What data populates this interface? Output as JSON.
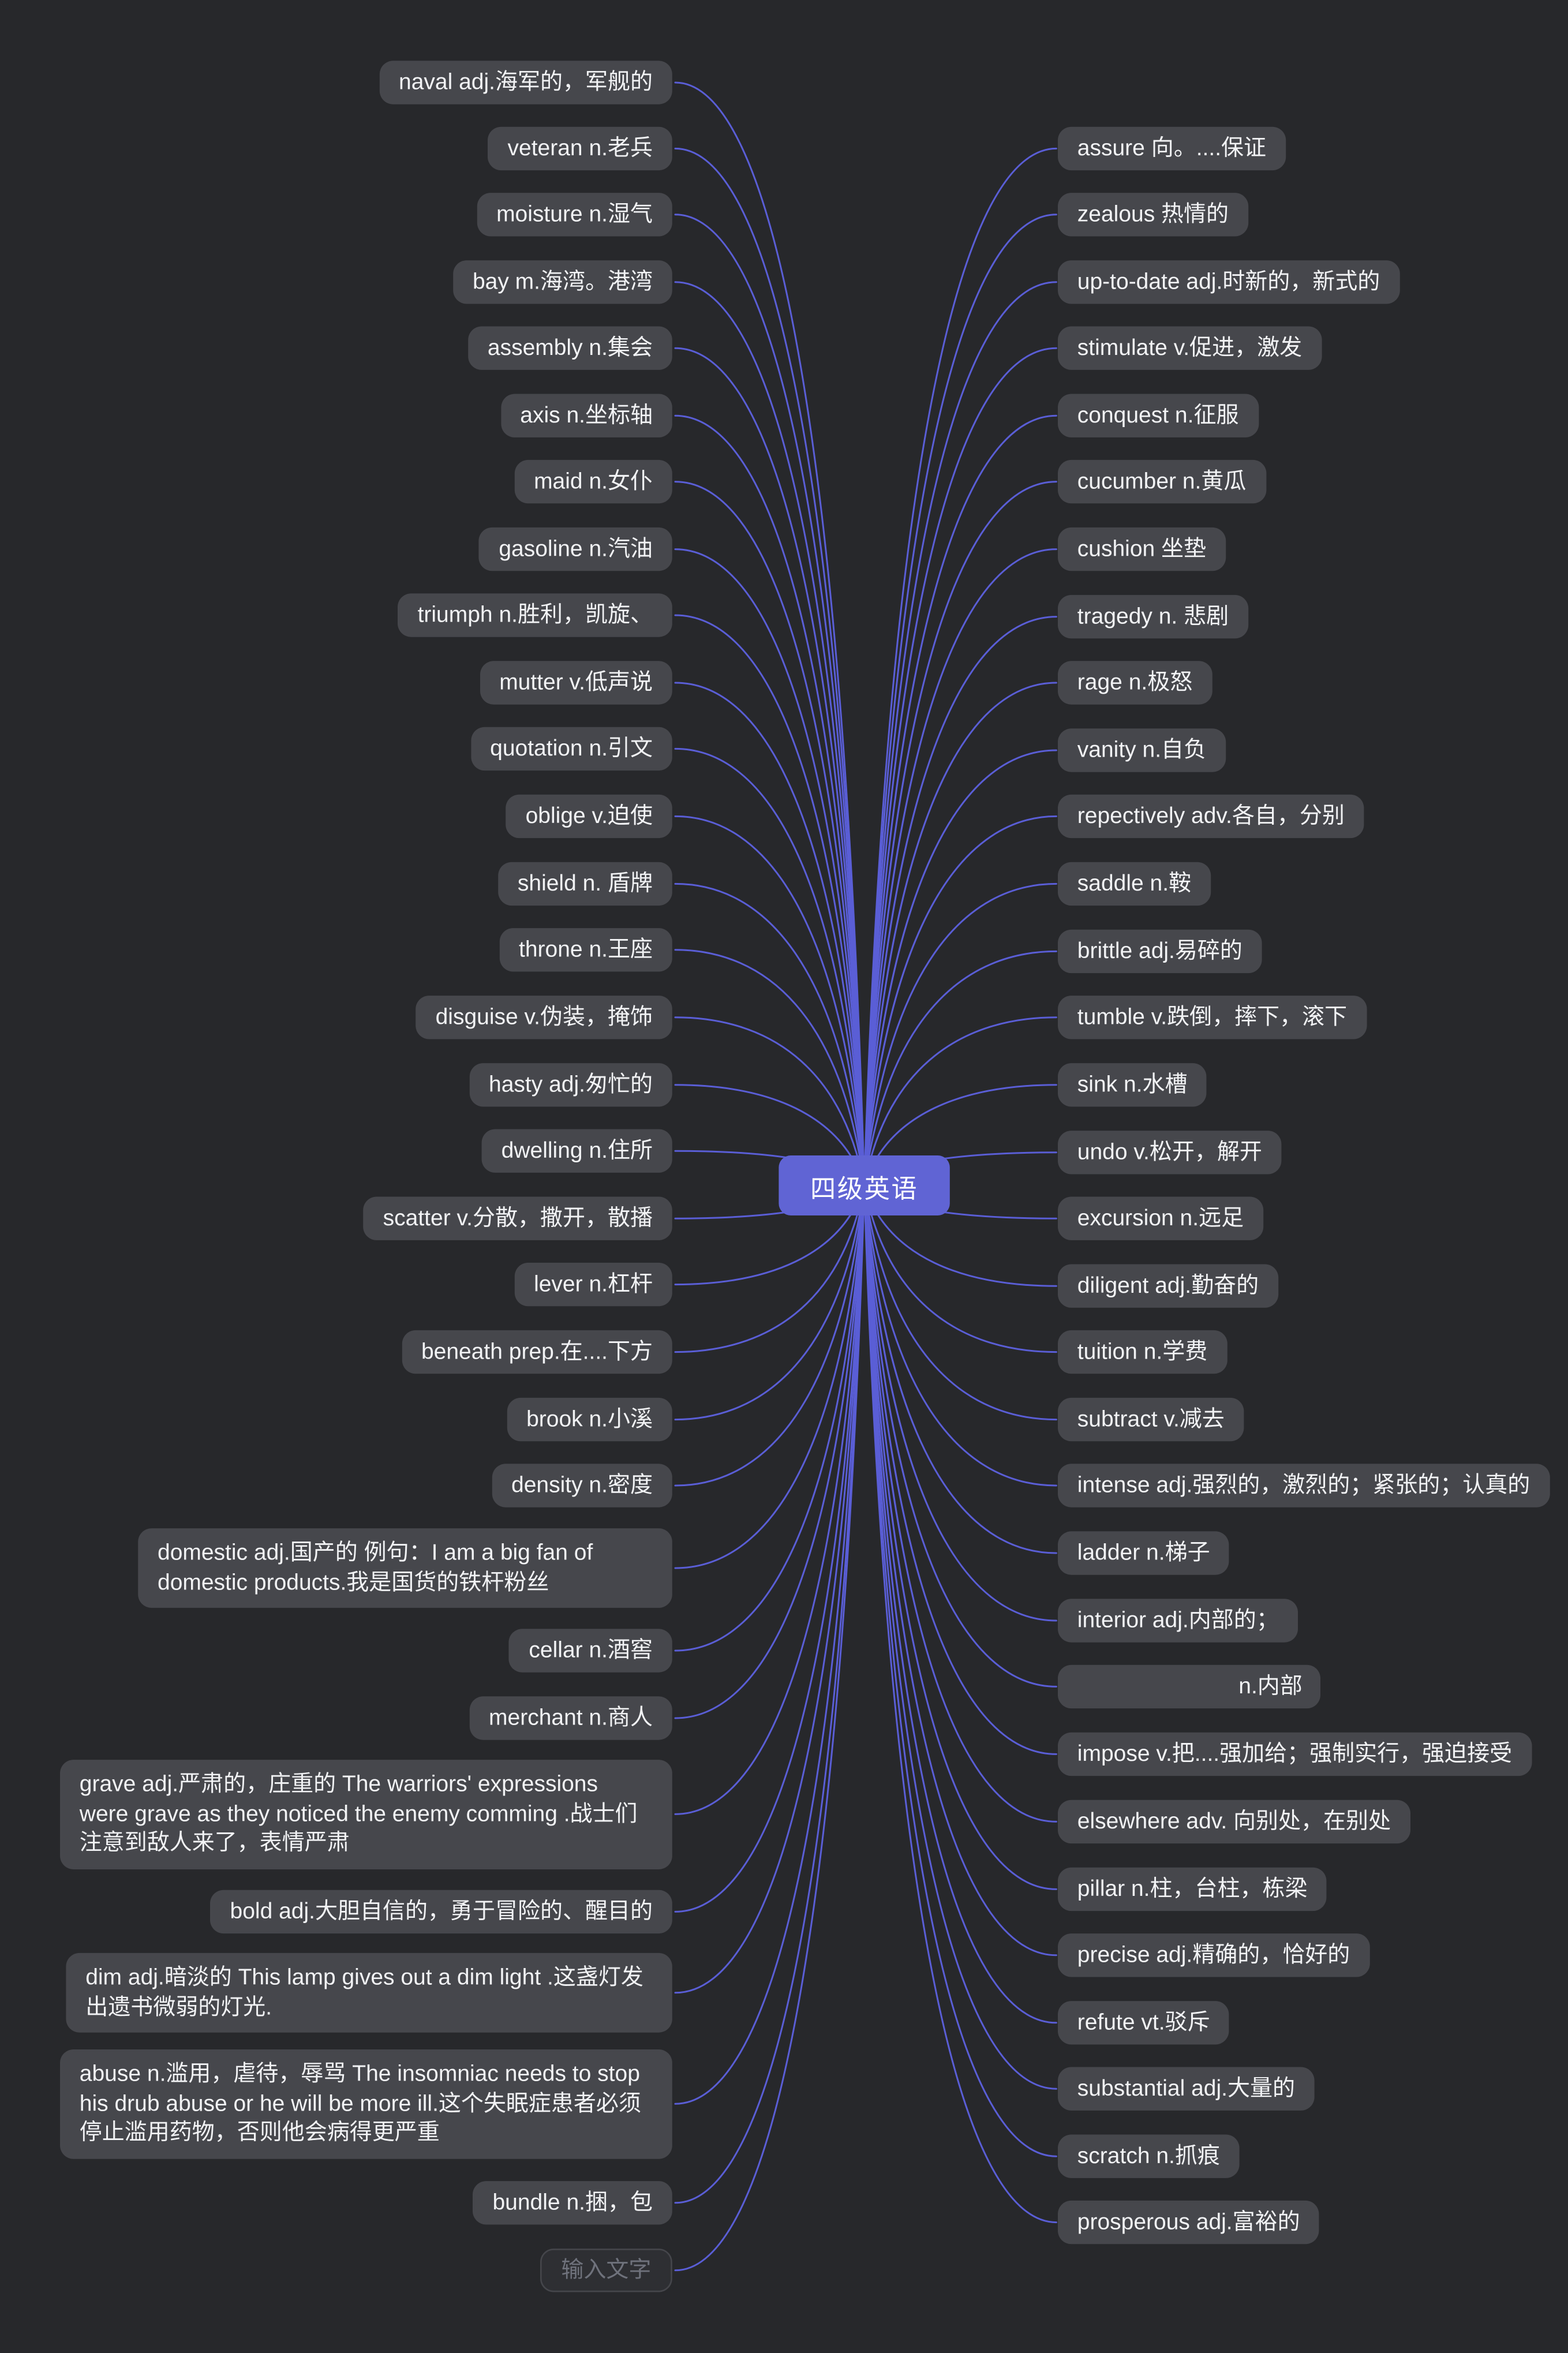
{
  "app": {
    "type": "mind-map",
    "theme": "dark"
  },
  "center": {
    "label": "四级英语"
  },
  "colors": {
    "background": "#27282b",
    "node_fill": "#46474c",
    "node_text": "#f2f3f5",
    "connector": "#5a5ed6",
    "center_fill": "#6064d4",
    "center_text": "#ffffff",
    "placeholder_fill": "#2e2f33",
    "placeholder_border": "#45464b",
    "placeholder_text": "#6f727c"
  },
  "left_branch": [
    {
      "label": "naval adj.海军的，军舰的"
    },
    {
      "label": "veteran n.老兵"
    },
    {
      "label": "moisture n.湿气"
    },
    {
      "label": "bay m.海湾。港湾"
    },
    {
      "label": "assembly n.集会"
    },
    {
      "label": "axis n.坐标轴"
    },
    {
      "label": "maid n.女仆"
    },
    {
      "label": "gasoline n.汽油"
    },
    {
      "label": "triumph n.胜利，凯旋、"
    },
    {
      "label": "mutter v.低声说"
    },
    {
      "label": "quotation n.引文"
    },
    {
      "label": "oblige v.迫使"
    },
    {
      "label": "shield n. 盾牌"
    },
    {
      "label": "throne n.王座"
    },
    {
      "label": "disguise v.伪装，掩饰"
    },
    {
      "label": "hasty adj.匆忙的"
    },
    {
      "label": "dwelling n.住所"
    },
    {
      "label": "scatter v.分散，撒开，散播"
    },
    {
      "label": "lever n.杠杆"
    },
    {
      "label": "beneath prep.在....下方"
    },
    {
      "label": "brook n.小溪"
    },
    {
      "label": "density n.密度"
    },
    {
      "label": "domestic adj.国产的 例句：I am a big fan of domestic products.我是国货的铁杆粉丝"
    },
    {
      "label": "cellar n.酒窖"
    },
    {
      "label": "merchant n.商人"
    },
    {
      "label": "grave adj.严肃的，庄重的 The warriors' expressions were grave as they noticed the enemy comming .战士们注意到敌人来了，表情严肃"
    },
    {
      "label": "bold adj.大胆自信的，勇于冒险的、醒目的"
    },
    {
      "label": "dim adj.暗淡的 This lamp gives out a dim light .这盏灯发出遗书微弱的灯光."
    },
    {
      "label": "abuse n.滥用，虐待，辱骂 The insomniac needs to stop his drub abuse or he will be more ill.这个失眠症患者必须停止滥用药物，否则他会病得更严重"
    },
    {
      "label": "bundle n.捆，包"
    },
    {
      "label": "输入文字",
      "placeholder": true
    }
  ],
  "right_branch": [
    {
      "label": "assure 向。....保证"
    },
    {
      "label": "zealous 热情的"
    },
    {
      "label": "up-to-date adj.时新的，新式的"
    },
    {
      "label": "stimulate v.促进，激发"
    },
    {
      "label": "conquest n.征服"
    },
    {
      "label": "cucumber n.黄瓜"
    },
    {
      "label": "cushion 坐垫"
    },
    {
      "label": "tragedy n. 悲剧"
    },
    {
      "label": "rage n.极怒"
    },
    {
      "label": "vanity n.自负"
    },
    {
      "label": "repectively adv.各自，分别"
    },
    {
      "label": "saddle n.鞍"
    },
    {
      "label": "brittle adj.易碎的"
    },
    {
      "label": "tumble v.跌倒，摔下，滚下"
    },
    {
      "label": "sink n.水槽"
    },
    {
      "label": "undo v.松开，解开"
    },
    {
      "label": "excursion n.远足"
    },
    {
      "label": "diligent adj.勤奋的"
    },
    {
      "label": "tuition n.学费"
    },
    {
      "label": "subtract v.减去"
    },
    {
      "label": "intense adj.强烈的，激烈的；紧张的；认真的"
    },
    {
      "label": "ladder n.梯子"
    },
    {
      "label": "interior adj.内部的；"
    },
    {
      "label": "n.内部",
      "indent": true
    },
    {
      "label": "impose v.把....强加给；强制实行，强迫接受"
    },
    {
      "label": "elsewhere adv. 向别处，在别处"
    },
    {
      "label": "pillar n.柱，台柱，栋梁"
    },
    {
      "label": "precise adj.精确的，恰好的"
    },
    {
      "label": "refute vt.驳斥"
    },
    {
      "label": "substantial adj.大量的"
    },
    {
      "label": "scratch n.抓痕"
    },
    {
      "label": "prosperous adj.富裕的"
    }
  ]
}
